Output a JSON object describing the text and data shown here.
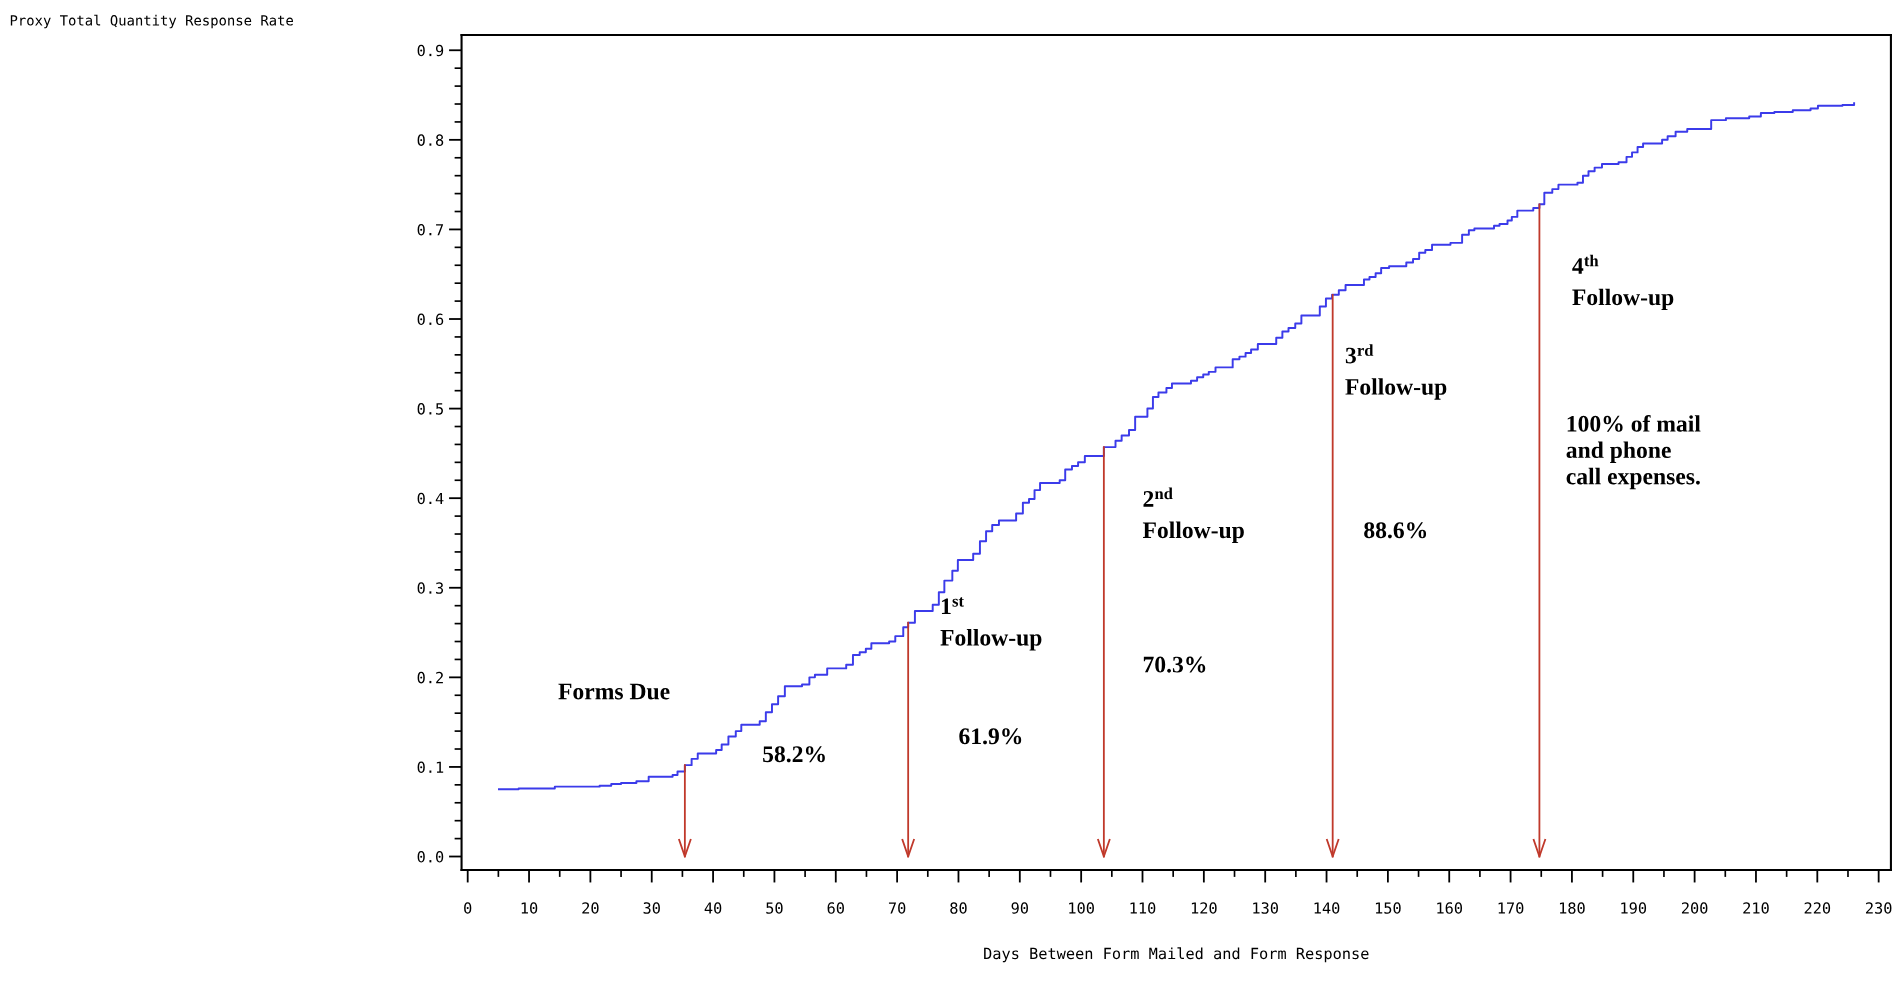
{
  "chart_data": {
    "type": "step",
    "xlabel": "Days Between Form Mailed and Form Response",
    "series": [
      {
        "color": "#3b3bea",
        "x": [
          5.1,
          8.3,
          14.2,
          21.5,
          23.4,
          25,
          27.5,
          29.5,
          33.4,
          34.2,
          35.4,
          36.5,
          37.5,
          40.5,
          41.4,
          42.5,
          43.7,
          44.6,
          47.6,
          48.6,
          49.6,
          50.6,
          51.7,
          54.5,
          55.7,
          56.6,
          58.6,
          61.7,
          62.8,
          63.9,
          64.9,
          65.8,
          68.7,
          69.7,
          71,
          71.8,
          72.9,
          75.8,
          76.8,
          77.7,
          79,
          79.9,
          82.4,
          83.5,
          84.5,
          85.5,
          86.6,
          89.4,
          90.5,
          91.5,
          92.4,
          93.3,
          96.5,
          97.4,
          98.5,
          99.5,
          100.6,
          103.7,
          105.6,
          106.6,
          107.8,
          108.8,
          110.8,
          111.7,
          112.6,
          113.9,
          114.8,
          117.9,
          118.9,
          119.9,
          120.8,
          121.9,
          124.7,
          125.8,
          126.8,
          127.7,
          128.8,
          131.8,
          132.8,
          133.8,
          134.9,
          135.9,
          138.9,
          139.9,
          140.9,
          142,
          143.1,
          146.1,
          147,
          148,
          148.9,
          150.2,
          153,
          154.1,
          155.1,
          156.1,
          157.2,
          160.2,
          162.1,
          163.2,
          164.1,
          167.3,
          168.2,
          169.5,
          170.2,
          171.1,
          173.7,
          174.7,
          175.5,
          176.8,
          177.8,
          180.9,
          181.8,
          182.7,
          183.7,
          184.9,
          187.6,
          188.9,
          189.8,
          190.7,
          191.6,
          194.7,
          195.6,
          196.9,
          198.8,
          202.7,
          205.1,
          208.9,
          210.8,
          213,
          216,
          218.9,
          220.1,
          224.1,
          226
        ],
        "values": [
          0.075,
          0.076,
          0.078,
          0.079,
          0.081,
          0.082,
          0.084,
          0.089,
          0.091,
          0.095,
          0.102,
          0.109,
          0.115,
          0.119,
          0.125,
          0.134,
          0.14,
          0.147,
          0.151,
          0.161,
          0.17,
          0.179,
          0.19,
          0.192,
          0.2,
          0.203,
          0.21,
          0.214,
          0.225,
          0.228,
          0.232,
          0.238,
          0.24,
          0.246,
          0.256,
          0.261,
          0.274,
          0.281,
          0.295,
          0.308,
          0.319,
          0.331,
          0.338,
          0.352,
          0.363,
          0.37,
          0.375,
          0.383,
          0.395,
          0.399,
          0.409,
          0.417,
          0.42,
          0.432,
          0.436,
          0.44,
          0.447,
          0.457,
          0.464,
          0.47,
          0.476,
          0.491,
          0.5,
          0.513,
          0.518,
          0.523,
          0.528,
          0.531,
          0.535,
          0.538,
          0.541,
          0.546,
          0.555,
          0.558,
          0.562,
          0.566,
          0.572,
          0.579,
          0.586,
          0.59,
          0.595,
          0.604,
          0.614,
          0.623,
          0.627,
          0.632,
          0.638,
          0.644,
          0.647,
          0.651,
          0.657,
          0.659,
          0.663,
          0.667,
          0.674,
          0.677,
          0.683,
          0.685,
          0.694,
          0.699,
          0.701,
          0.704,
          0.706,
          0.71,
          0.714,
          0.721,
          0.724,
          0.728,
          0.741,
          0.745,
          0.75,
          0.752,
          0.76,
          0.765,
          0.769,
          0.773,
          0.775,
          0.781,
          0.786,
          0.792,
          0.796,
          0.8,
          0.804,
          0.809,
          0.812,
          0.822,
          0.824,
          0.826,
          0.83,
          0.831,
          0.833,
          0.835,
          0.838,
          0.839,
          0.841
        ]
      }
    ],
    "xlim": [
      -1,
      232
    ],
    "xticks": [
      0,
      10,
      20,
      30,
      40,
      50,
      60,
      70,
      80,
      90,
      100,
      110,
      120,
      130,
      140,
      150,
      160,
      170,
      180,
      190,
      200,
      210,
      220,
      230
    ],
    "ylim": [
      -0.015,
      0.917
    ],
    "yticks": [
      {
        "value": 0,
        "label": "0.0"
      },
      {
        "value": 0.1,
        "label": "0.1"
      },
      {
        "value": 0.2,
        "label": "0.2"
      },
      {
        "value": 0.3,
        "label": "0.3"
      },
      {
        "value": 0.4,
        "label": "0.4"
      },
      {
        "value": 0.5,
        "label": "0.5"
      },
      {
        "value": 0.6,
        "label": "0.6"
      },
      {
        "value": 0.7,
        "label": "0.7"
      },
      {
        "value": 0.8,
        "label": "0.8"
      },
      {
        "value": 0.9,
        "label": "0.9"
      }
    ],
    "ref_lines": [
      {
        "axis": "x",
        "value": 35.4,
        "label": "Forms Due",
        "color": "#c0392b"
      },
      {
        "axis": "x",
        "value": 71.8,
        "label": "1$^{st}$\nFollow-up",
        "color": "#c0392b"
      },
      {
        "axis": "x",
        "value": 103.7,
        "label": "2$^{nd}$\nFollow-up",
        "color": "#c0392b"
      },
      {
        "axis": "x",
        "value": 141,
        "label": "3$^{rd}$\nFollow-up",
        "color": "#c0392b"
      },
      {
        "axis": "x",
        "value": 174.7,
        "label": "4$^{th}$\nFollow-up",
        "color": "#c0392b"
      }
    ],
    "annotations": [
      "Proxy Total Quantity Response Rate",
      "58.2%",
      "61.9%",
      "70.3%",
      "88.6%",
      "100% of mail\nand phone\ncall expenses."
    ],
    "grid": false,
    "legend": false,
    "marker": "none",
    "line_style": "solid"
  }
}
